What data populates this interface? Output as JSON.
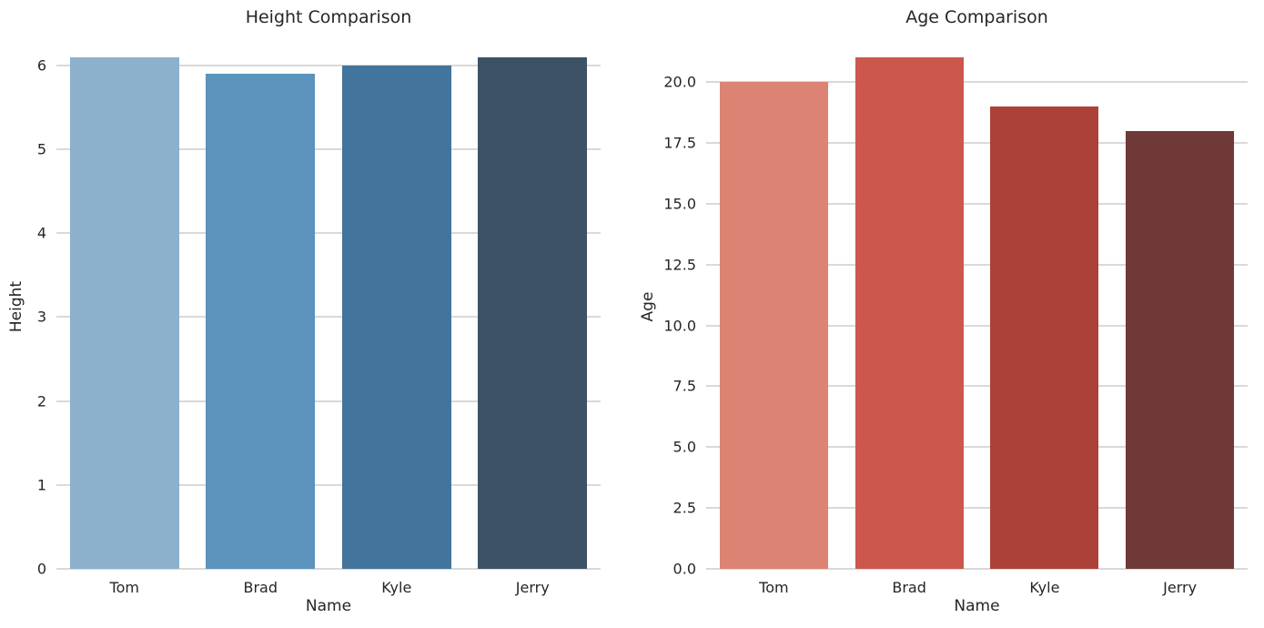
{
  "figure": {
    "background_color": "#ffffff",
    "grid_color": "#d9d9d9",
    "text_color": "#262626"
  },
  "chart_data": [
    {
      "type": "bar",
      "title": "Height Comparison",
      "xlabel": "Name",
      "ylabel": "Height",
      "categories": [
        "Tom",
        "Brad",
        "Kyle",
        "Jerry"
      ],
      "values": [
        6.1,
        5.9,
        6.0,
        6.1
      ],
      "bar_colors": [
        "#8BB1CC",
        "#5C93BD",
        "#43749B",
        "#3D5266"
      ],
      "ytick_values": [
        0,
        1,
        2,
        3,
        4,
        5,
        6
      ],
      "ytick_labels": [
        "0",
        "1",
        "2",
        "3",
        "4",
        "5",
        "6"
      ],
      "ylim": [
        0,
        6.28
      ],
      "grid": true,
      "legend": null,
      "bar_width_fraction": 0.8
    },
    {
      "type": "bar",
      "title": "Age Comparison",
      "xlabel": "Name",
      "ylabel": "Age",
      "categories": [
        "Tom",
        "Brad",
        "Kyle",
        "Jerry"
      ],
      "values": [
        20,
        21,
        19,
        18
      ],
      "bar_colors": [
        "#DD8374",
        "#CC574C",
        "#AC4138",
        "#6F3937"
      ],
      "ytick_values": [
        0,
        2.5,
        5,
        7.5,
        10,
        12.5,
        15,
        17.5,
        20
      ],
      "ytick_labels": [
        "0.0",
        "2.5",
        "5.0",
        "7.5",
        "10.0",
        "12.5",
        "15.0",
        "17.5",
        "20.0"
      ],
      "ylim": [
        0,
        21.65
      ],
      "grid": true,
      "legend": null,
      "bar_width_fraction": 0.8
    }
  ]
}
